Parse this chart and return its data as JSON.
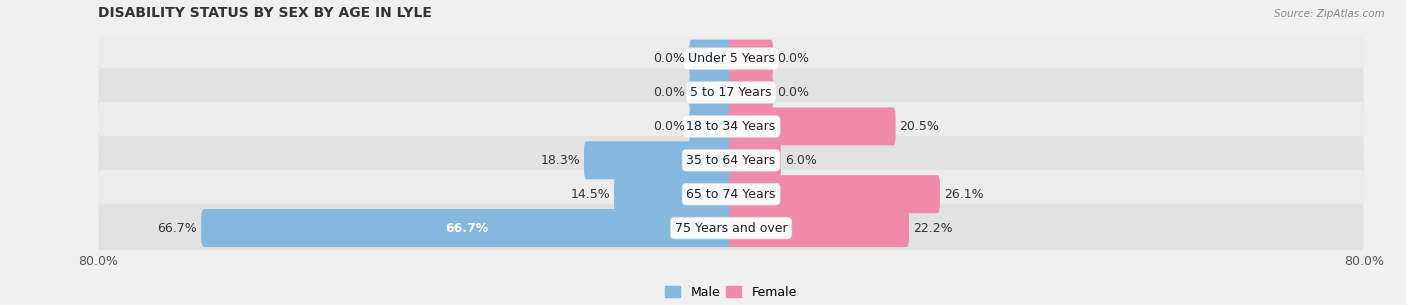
{
  "title": "DISABILITY STATUS BY SEX BY AGE IN LYLE",
  "source": "Source: ZipAtlas.com",
  "categories": [
    "Under 5 Years",
    "5 to 17 Years",
    "18 to 34 Years",
    "35 to 64 Years",
    "65 to 74 Years",
    "75 Years and over"
  ],
  "male_values": [
    0.0,
    0.0,
    0.0,
    18.3,
    14.5,
    66.7
  ],
  "female_values": [
    0.0,
    0.0,
    20.5,
    6.0,
    26.1,
    22.2
  ],
  "male_color": "#85b8dc",
  "female_color": "#f08aaa",
  "row_bg_even": "#ececec",
  "row_bg_odd": "#e2e2e2",
  "fig_bg": "#f0f0f0",
  "x_min": -80.0,
  "x_max": 80.0,
  "bar_height": 0.52,
  "min_bar_width": 5.0,
  "label_fontsize": 9,
  "title_fontsize": 10,
  "category_fontsize": 9
}
